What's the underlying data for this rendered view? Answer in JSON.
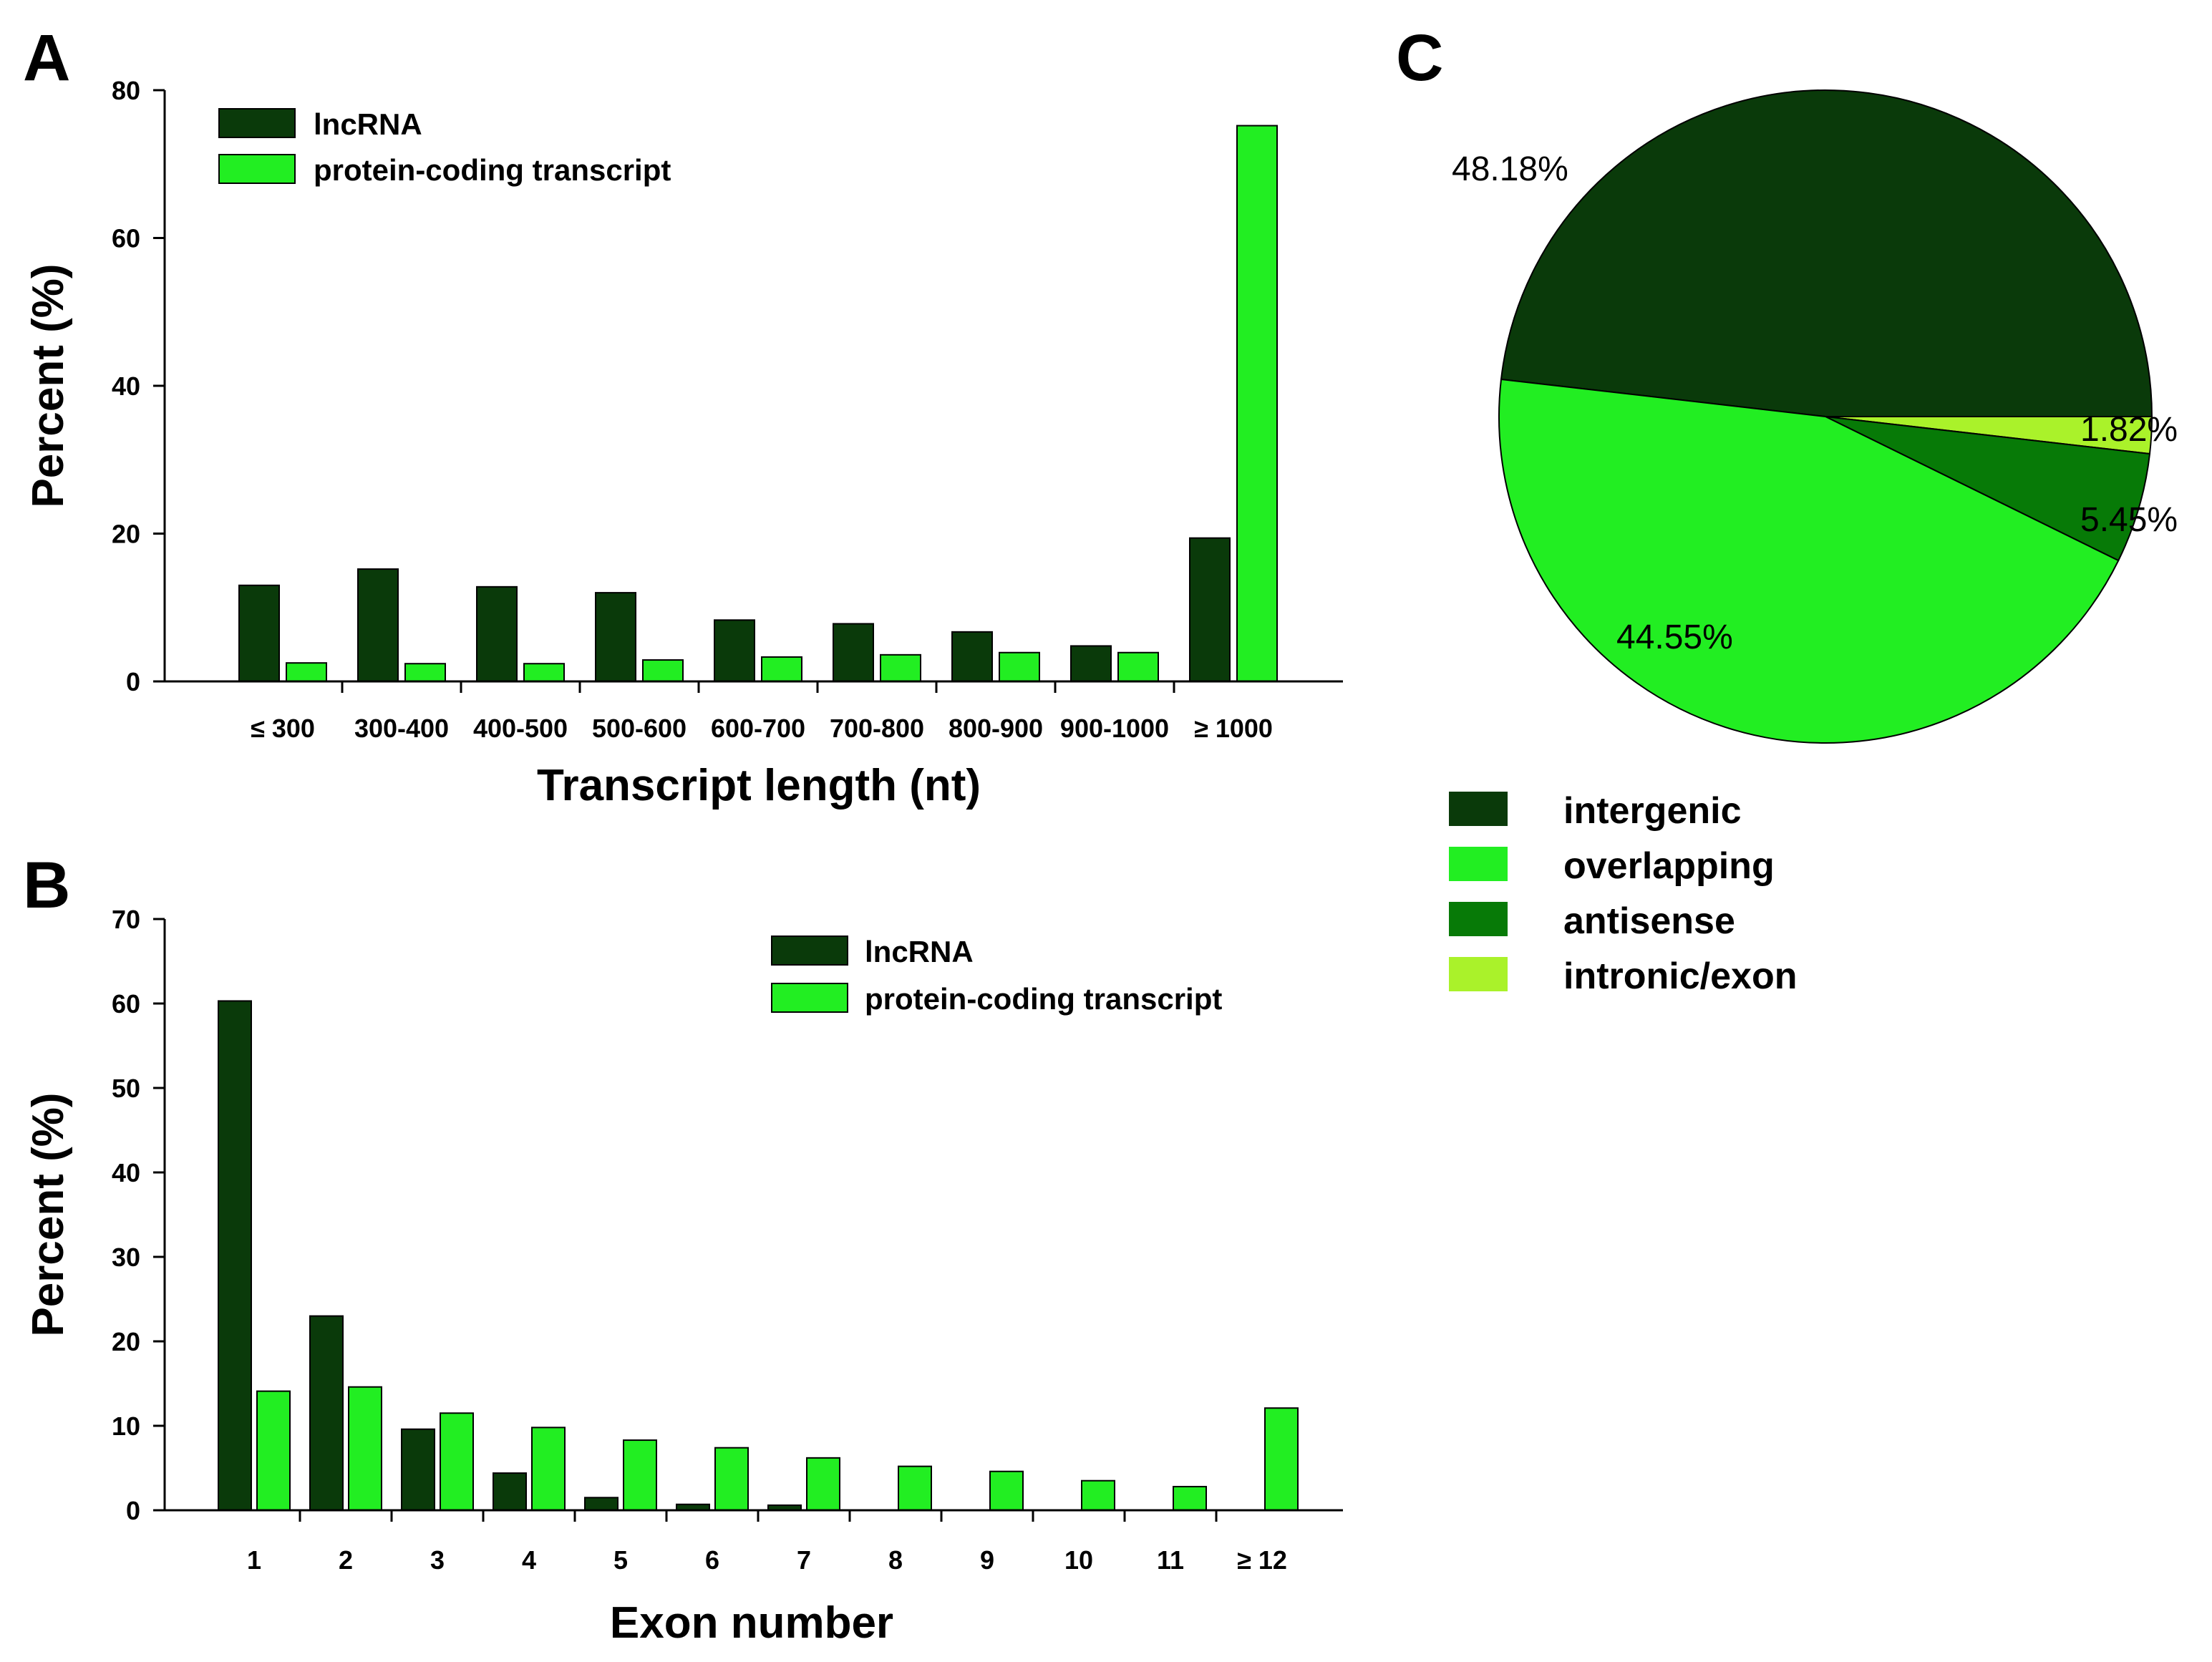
{
  "colors": {
    "lncRNA": "#0a3a0a",
    "protein_coding": "#22ee22",
    "intergenic": "#0a3a0a",
    "overlapping": "#22ee22",
    "antisense": "#077a07",
    "intronic_exon": "#aaf22a",
    "outline": "#000000"
  },
  "panels": {
    "a_letter": "A",
    "b_letter": "B",
    "c_letter": "C"
  },
  "chart_data": [
    {
      "id": "A",
      "type": "bar",
      "title": "",
      "xlabel": "Transcript length (nt)",
      "ylabel": "Percent (%)",
      "ylim": [
        0,
        80
      ],
      "yticks": [
        "0",
        "20",
        "40",
        "60",
        "80"
      ],
      "categories": [
        "≤ 300",
        "300-400",
        "400-500",
        "500-600",
        "600-700",
        "700-800",
        "800-900",
        "900-1000",
        "≥ 1000"
      ],
      "series": [
        {
          "name": "lncRNA",
          "values": [
            13,
            15.2,
            12.8,
            12,
            8.3,
            7.8,
            6.7,
            4.8,
            19.4
          ]
        },
        {
          "name": "protein-coding transcript",
          "values": [
            2.5,
            2.4,
            2.4,
            2.9,
            3.3,
            3.6,
            3.9,
            3.9,
            75.2
          ]
        }
      ],
      "legend": [
        "lncRNA",
        "protein-coding transcript"
      ]
    },
    {
      "id": "B",
      "type": "bar",
      "title": "",
      "xlabel": "Exon number",
      "ylabel": "Percent (%)",
      "ylim": [
        0,
        70
      ],
      "yticks": [
        "0",
        "10",
        "20",
        "30",
        "40",
        "50",
        "60",
        "70"
      ],
      "categories": [
        "1",
        "2",
        "3",
        "4",
        "5",
        "6",
        "7",
        "8",
        "9",
        "10",
        "11",
        "≥ 12"
      ],
      "series": [
        {
          "name": "lncRNA",
          "values": [
            60.3,
            23,
            9.6,
            4.4,
            1.5,
            0.7,
            0.6,
            0,
            0,
            0,
            0,
            0
          ]
        },
        {
          "name": "protein-coding transcript",
          "values": [
            14.1,
            14.6,
            11.5,
            9.8,
            8.3,
            7.4,
            6.2,
            5.2,
            4.6,
            3.5,
            2.8,
            12.1
          ]
        }
      ],
      "legend": [
        "lncRNA",
        "protein-coding transcript"
      ]
    },
    {
      "id": "C",
      "type": "pie",
      "title": "",
      "slices": [
        {
          "name": "intergenic",
          "value": 48.18,
          "label": "48.18%"
        },
        {
          "name": "intronic/exon",
          "value": 1.82,
          "label": "1.82%"
        },
        {
          "name": "antisense",
          "value": 5.45,
          "label": "5.45%"
        },
        {
          "name": "overlapping",
          "value": 44.55,
          "label": "44.55%"
        }
      ],
      "legend": [
        "intergenic",
        "overlapping",
        "antisense",
        "intronic/exon"
      ]
    }
  ]
}
